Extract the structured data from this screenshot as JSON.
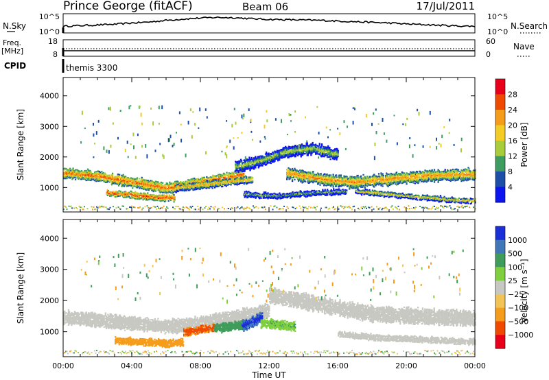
{
  "header": {
    "station": "Prince George (fitACF)",
    "beam": "Beam 06",
    "date": "17/Jul/2011"
  },
  "strip_nsky": {
    "label": "N.Sky",
    "ticks_left": [
      "10^5",
      "10^0"
    ],
    "ticks_right": [
      "10^5",
      "10^0"
    ],
    "right_label": "N.Search",
    "values": [
      1.6,
      1.8,
      2.0,
      2.2,
      2.6,
      2.9,
      3.4,
      3.8,
      4.1,
      4.3,
      4.2,
      3.9,
      3.7,
      3.6,
      3.5,
      3.4,
      3.2,
      3.0,
      2.8,
      2.6,
      2.3,
      2.1,
      1.9,
      1.7,
      1.6
    ]
  },
  "strip_freq": {
    "label_line1": "Freq.",
    "label_line2": "[MHz]",
    "ticks_left": [
      "18",
      "8"
    ],
    "ticks_right": [
      "60",
      "0"
    ],
    "right_label": "Nave"
  },
  "strip_cpid": {
    "label": "CPID",
    "program": "themis 3300"
  },
  "axes": {
    "xlabel": "Time UT",
    "x_ticks": [
      "00:00",
      "04:00",
      "08:00",
      "12:00",
      "16:00",
      "20:00",
      "00:00"
    ],
    "ylabel": "Slant Range [km]",
    "y_ticks": [
      "1000",
      "2000",
      "3000",
      "4000"
    ]
  },
  "chart_data": [
    {
      "type": "heatmap",
      "panel": "power",
      "xlabel": "Time UT",
      "ylabel": "Slant Range [km]",
      "xlim": [
        0,
        24
      ],
      "ylim": [
        200,
        4600
      ],
      "colorbar": {
        "label": "Power [dB]",
        "ticks": [
          "28",
          "24",
          "20",
          "16",
          "12",
          "8",
          "4"
        ],
        "colors": [
          "#e8001a",
          "#f04a00",
          "#f59c1a",
          "#f4cc26",
          "#a9cd3a",
          "#3f9c60",
          "#1e4fa8",
          "#0c14ef"
        ]
      },
      "bands": [
        {
          "x": [
            0.0,
            2.0,
            4.0,
            6.0,
            7.5,
            9.0,
            10.5
          ],
          "y": [
            1500,
            1400,
            1200,
            1000,
            1150,
            1300,
            1450
          ],
          "width": 280,
          "level": 26
        },
        {
          "x": [
            2.5,
            4.0,
            5.5,
            6.5
          ],
          "y": [
            850,
            780,
            680,
            700
          ],
          "width": 180,
          "level": 28
        },
        {
          "x": [
            6.5,
            8.0,
            9.5,
            11.0
          ],
          "y": [
            1000,
            1100,
            1200,
            1300
          ],
          "width": 200,
          "level": 22
        },
        {
          "x": [
            10.0,
            11.5,
            13.0,
            14.5,
            16.0
          ],
          "y": [
            1700,
            1900,
            2200,
            2300,
            2100
          ],
          "width": 320,
          "level": 16
        },
        {
          "x": [
            13.0,
            15.0,
            17.0,
            19.0,
            21.0,
            23.0,
            24.0
          ],
          "y": [
            1500,
            1300,
            1200,
            1300,
            1400,
            1450,
            1450
          ],
          "width": 320,
          "level": 24
        },
        {
          "x": [
            10.5,
            12.5,
            14.5,
            16.5
          ],
          "y": [
            800,
            750,
            850,
            900
          ],
          "width": 150,
          "level": 14
        },
        {
          "x": [
            17.0,
            19.0,
            21.0,
            23.0,
            24.0
          ],
          "y": [
            900,
            800,
            700,
            600,
            600
          ],
          "width": 140,
          "level": 20
        }
      ]
    },
    {
      "type": "heatmap",
      "panel": "velocity",
      "xlabel": "Time UT",
      "ylabel": "Slant Range [km]",
      "xlim": [
        0,
        24
      ],
      "ylim": [
        200,
        4600
      ],
      "colorbar": {
        "label": "Velocity [m s⁻¹]",
        "ticks": [
          "1000",
          "500",
          "100",
          "25",
          "−25",
          "−100",
          "−500",
          "−1000"
        ],
        "colors": [
          "#1a2fd8",
          "#3f77b8",
          "#3f9c5a",
          "#7fcf3e",
          "#c8c8c2",
          "#f2c455",
          "#f59c1a",
          "#f04a00",
          "#e8001a"
        ]
      },
      "bands": [
        {
          "x": [
            0.0,
            2.0,
            4.0,
            6.0,
            8.0,
            10.0,
            12.0
          ],
          "y": [
            1500,
            1400,
            1300,
            1200,
            1300,
            1500,
            1700
          ],
          "width": 380,
          "level": 0
        },
        {
          "x": [
            3.0,
            4.5,
            6.0,
            7.0
          ],
          "y": [
            750,
            700,
            650,
            700
          ],
          "width": 200,
          "level": -150
        },
        {
          "x": [
            7.0,
            8.0,
            8.8
          ],
          "y": [
            1000,
            1100,
            1150
          ],
          "width": 220,
          "level": -400
        },
        {
          "x": [
            8.8,
            9.6,
            10.5
          ],
          "y": [
            1150,
            1200,
            1250
          ],
          "width": 240,
          "level": 200
        },
        {
          "x": [
            10.4,
            11.0,
            11.6
          ],
          "y": [
            1200,
            1350,
            1500
          ],
          "width": 300,
          "level": 900
        },
        {
          "x": [
            11.5,
            12.5,
            13.5
          ],
          "y": [
            1300,
            1250,
            1200
          ],
          "width": 260,
          "level": 60
        },
        {
          "x": [
            12.0,
            14.0,
            16.0,
            18.0,
            20.0,
            22.0,
            24.0
          ],
          "y": [
            2200,
            2000,
            1800,
            1600,
            1550,
            1500,
            1450
          ],
          "width": 420,
          "level": 0
        },
        {
          "x": [
            16.0,
            18.0,
            20.0,
            22.0,
            24.0
          ],
          "y": [
            950,
            850,
            800,
            750,
            700
          ],
          "width": 160,
          "level": 10
        }
      ]
    }
  ]
}
